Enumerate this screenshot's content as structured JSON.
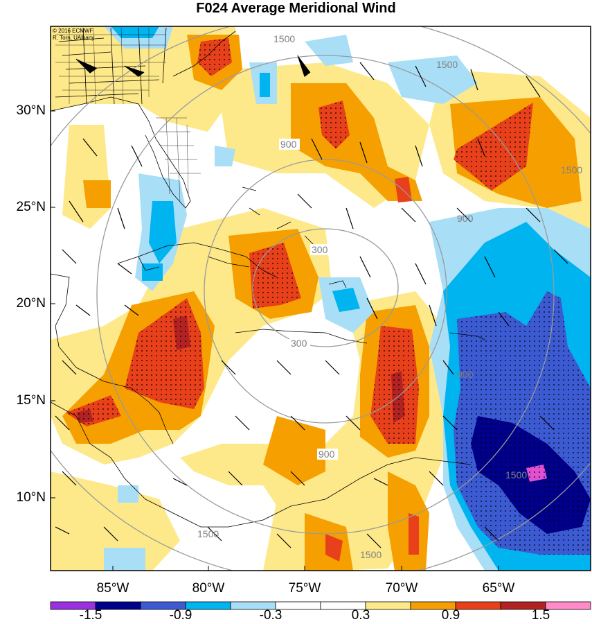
{
  "title": "F024 Average Meridional Wind",
  "credit": {
    "line1": "© 2016 ECMWF",
    "line2": "R. Torn, UAlbany"
  },
  "latitude_labels": [
    "30°N",
    "25°N",
    "20°N",
    "15°N",
    "10°N"
  ],
  "longitude_labels": [
    "85°W",
    "80°W",
    "75°W",
    "70°W",
    "65°W"
  ],
  "colorbar": {
    "labels": [
      "-1.5",
      "-0.9",
      "-0.3",
      "0.3",
      "0.9",
      "1.5"
    ],
    "colors": [
      "#9b30e0",
      "#00008b",
      "#3c5ad2",
      "#00b4f0",
      "#a9def7",
      "#ffffff",
      "#ffffff",
      "#fde98a",
      "#f5a000",
      "#e8401a",
      "#b22222",
      "#ff8cc8"
    ]
  },
  "contour_labels": [
    "300",
    "300",
    "900",
    "900",
    "900",
    "900",
    "1500",
    "1500",
    "1500",
    "1500",
    "1500",
    "1500"
  ],
  "colors": {
    "pos_light": "#fde98a",
    "pos_med": "#f5a000",
    "pos_strong": "#e8401a",
    "pos_max": "#b22222",
    "neg_light": "#a9def7",
    "neg_med": "#00b4f0",
    "neg_strong": "#3c5ad2",
    "neg_max": "#00008b",
    "neg_extreme": "#e050d0"
  }
}
